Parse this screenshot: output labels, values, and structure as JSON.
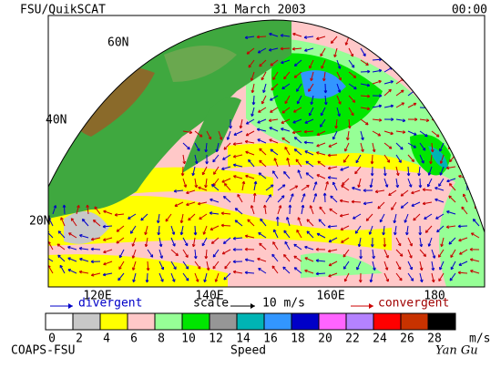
{
  "header": {
    "left": "FSU/QuikSCAT",
    "center": "31 March 2003",
    "right": "00:00"
  },
  "map": {
    "lat_labels": [
      "60N",
      "40N",
      "20N"
    ],
    "lon_labels": [
      "120E",
      "140E",
      "160E",
      "180"
    ]
  },
  "legend": {
    "divergent": "divergent",
    "scale": "scale",
    "scale_value": "10 m/s",
    "convergent": "convergent",
    "speed_ticks": [
      0,
      2,
      4,
      6,
      8,
      10,
      12,
      14,
      16,
      18,
      20,
      22,
      24,
      26,
      28
    ],
    "colors": [
      "#ffffff",
      "#c8c8c8",
      "#ffff00",
      "#ffc8c8",
      "#96ff96",
      "#00e600",
      "#969696",
      "#00b4b4",
      "#3296ff",
      "#0000c8",
      "#ff64ff",
      "#b482ff",
      "#ff0000",
      "#c83200",
      "#000000"
    ],
    "unit": "m/s",
    "title": "Speed"
  },
  "footer": {
    "left": "COAPS-FSU",
    "signature": "Yan Gu"
  }
}
